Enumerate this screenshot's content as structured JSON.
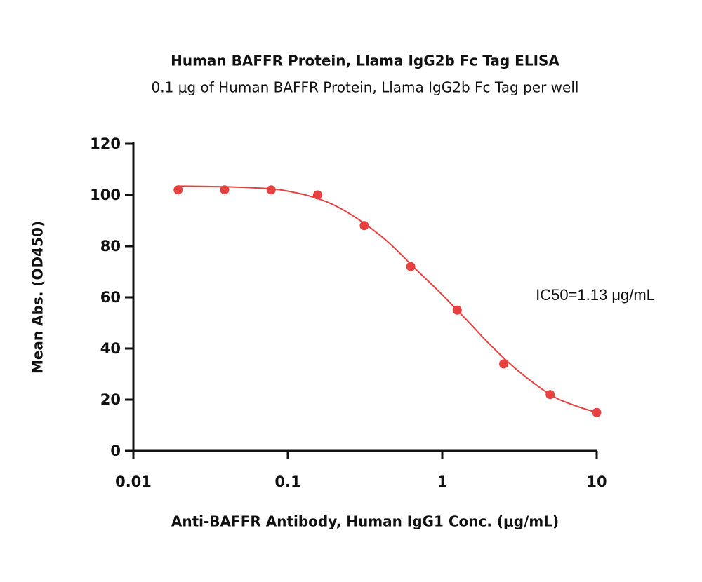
{
  "chart_data": {
    "type": "scatter",
    "title": "Human BAFFR Protein, Llama IgG2b Fc Tag ELISA",
    "subtitle": "0.1 μg of Human BAFFR Protein, Llama IgG2b Fc Tag per well",
    "x_label": "Anti-BAFFR Antibody, Human IgG1 Conc. (μg/mL)",
    "y_label": "Mean Abs. (OD450)",
    "annotation": "IC50=1.13 μg/mL",
    "xscale": "log",
    "xlim": [
      0.01,
      10
    ],
    "xticks": [
      0.01,
      0.1,
      1,
      10
    ],
    "ylim": [
      0,
      120
    ],
    "yticks": [
      0,
      20,
      40,
      60,
      80,
      100,
      120
    ],
    "series": [
      {
        "style": "points",
        "color": "#e8403f",
        "x": [
          0.0195,
          0.039,
          0.078,
          0.156,
          0.3125,
          0.625,
          1.25,
          2.5,
          5,
          10
        ],
        "values": [
          102,
          102,
          102,
          100,
          88,
          72,
          55,
          34,
          22,
          15
        ]
      },
      {
        "style": "line",
        "color": "#e8403f",
        "x": [
          0.0195,
          0.05,
          0.1,
          0.2,
          0.4,
          0.7,
          1,
          1.5,
          2,
          3,
          5,
          7,
          10
        ],
        "values": [
          103.5,
          103,
          101.5,
          96,
          84,
          70,
          61,
          50,
          42,
          32,
          22,
          18,
          15
        ]
      }
    ]
  }
}
